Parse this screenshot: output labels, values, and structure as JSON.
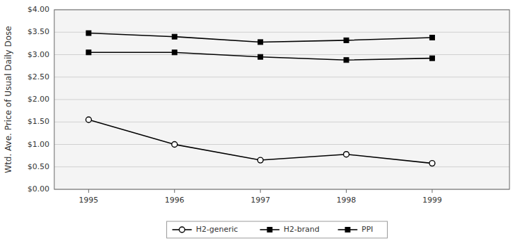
{
  "chart_data": {
    "type": "line",
    "y_label": "Wtd. Ave. Price of Usual Daily Dose",
    "x": [
      1995,
      1996,
      1997,
      1998,
      1999
    ],
    "xlim": [
      1994.6,
      1999.9
    ],
    "xticks": [
      1995,
      1996,
      1997,
      1998,
      1999
    ],
    "ylim": [
      0.0,
      4.0
    ],
    "yticks": [
      {
        "value": 0.0,
        "label": "$0.00"
      },
      {
        "value": 0.5,
        "label": "$0.50"
      },
      {
        "value": 1.0,
        "label": "$1.00"
      },
      {
        "value": 1.5,
        "label": "$1.50"
      },
      {
        "value": 2.0,
        "label": "$2.00"
      },
      {
        "value": 2.5,
        "label": "$2.50"
      },
      {
        "value": 3.0,
        "label": "$3.00"
      },
      {
        "value": 3.5,
        "label": "$3.50"
      },
      {
        "value": 4.0,
        "label": "$4.00"
      }
    ],
    "grid": true,
    "legend": "bottom",
    "series": [
      {
        "name": "H2-generic",
        "color": "#000000",
        "marker": "circle",
        "values": [
          1.55,
          1.0,
          0.65,
          0.78,
          0.58
        ]
      },
      {
        "name": "H2-brand",
        "color": "#000000",
        "marker": "square",
        "values": [
          3.05,
          3.05,
          2.95,
          2.88,
          2.92
        ]
      },
      {
        "name": "PPI",
        "color": "#000000",
        "marker": "square",
        "values": [
          3.48,
          3.4,
          3.28,
          3.32,
          3.38
        ]
      }
    ]
  }
}
